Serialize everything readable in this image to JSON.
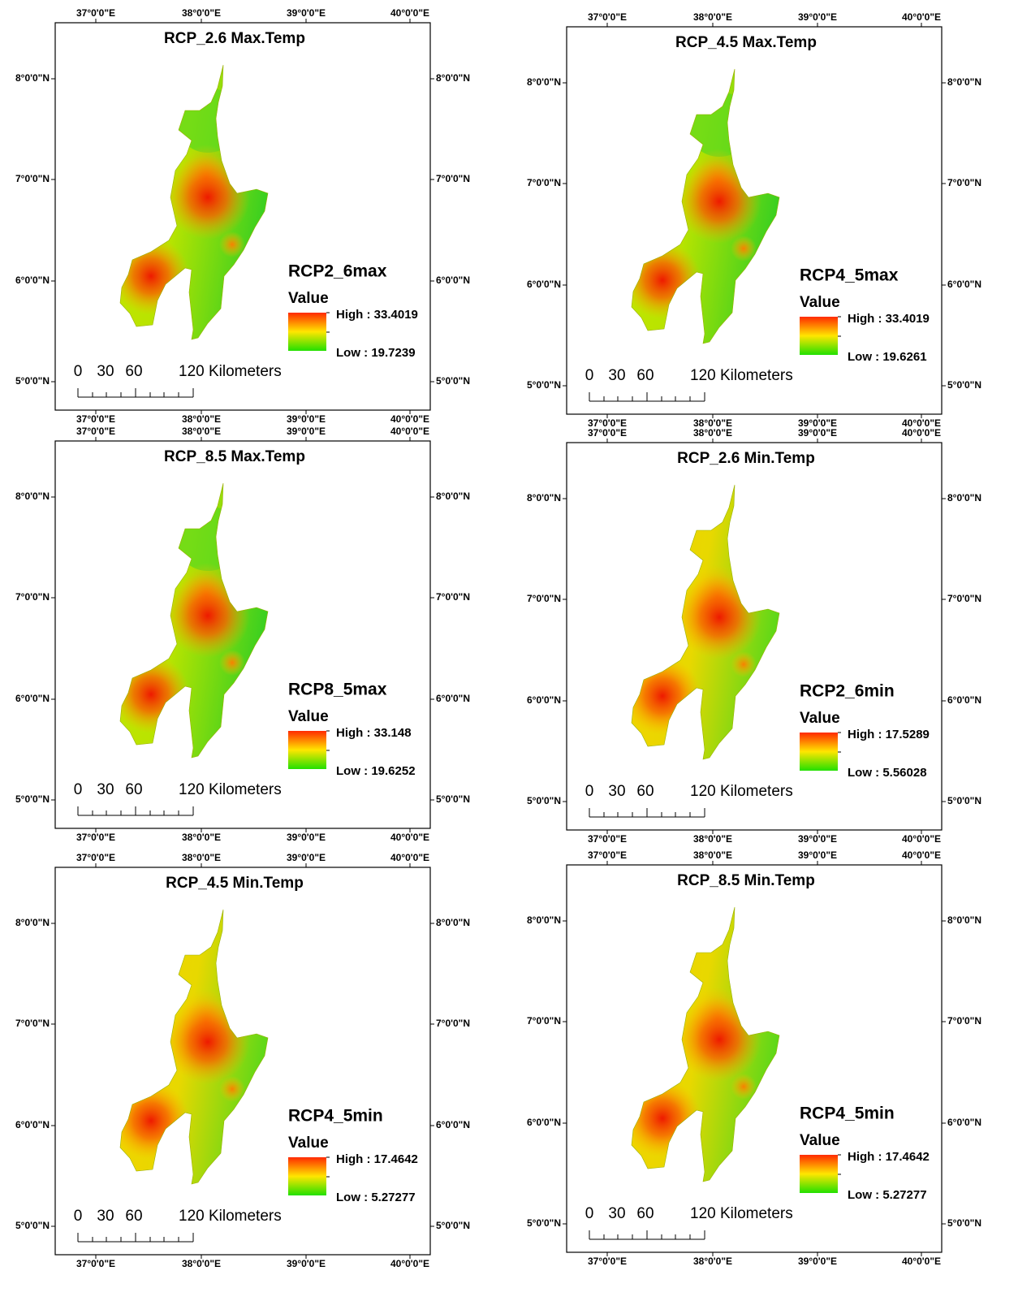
{
  "lon_labels": [
    "37°0'0\"E",
    "38°0'0\"E",
    "39°0'0\"E",
    "40°0'0\"E"
  ],
  "lat_labels": [
    "8°0'0\"N",
    "7°0'0\"N",
    "6°0'0\"N",
    "5°0'0\"N"
  ],
  "scale_labels": [
    "0",
    "30",
    "60",
    "120 Kilometers"
  ],
  "panels": [
    {
      "title": "RCP_2.6 Max.Temp",
      "legend_title": "RCP2_6max",
      "legend_field": "Value",
      "high": "High : 33.4019",
      "low": "Low : 19.7239"
    },
    {
      "title": "RCP_4.5 Max.Temp",
      "legend_title": "RCP4_5max",
      "legend_field": "Value",
      "high": "High : 33.4019",
      "low": "Low : 19.6261"
    },
    {
      "title": "RCP_8.5 Max.Temp",
      "legend_title": "RCP8_5max",
      "legend_field": "Value",
      "high": "High : 33.148",
      "low": "Low : 19.6252"
    },
    {
      "title": "RCP_2.6 Min.Temp",
      "legend_title": "RCP2_6min",
      "legend_field": "Value",
      "high": "High : 17.5289",
      "low": "Low : 5.56028"
    },
    {
      "title": "RCP_4.5 Min.Temp",
      "legend_title": "RCP4_5min",
      "legend_field": "Value",
      "high": "High : 17.4642",
      "low": "Low : 5.27277"
    },
    {
      "title": "RCP_8.5 Min.Temp",
      "legend_title": "RCP4_5min",
      "legend_field": "Value",
      "high": "High : 17.4642",
      "low": "Low : 5.27277"
    }
  ]
}
